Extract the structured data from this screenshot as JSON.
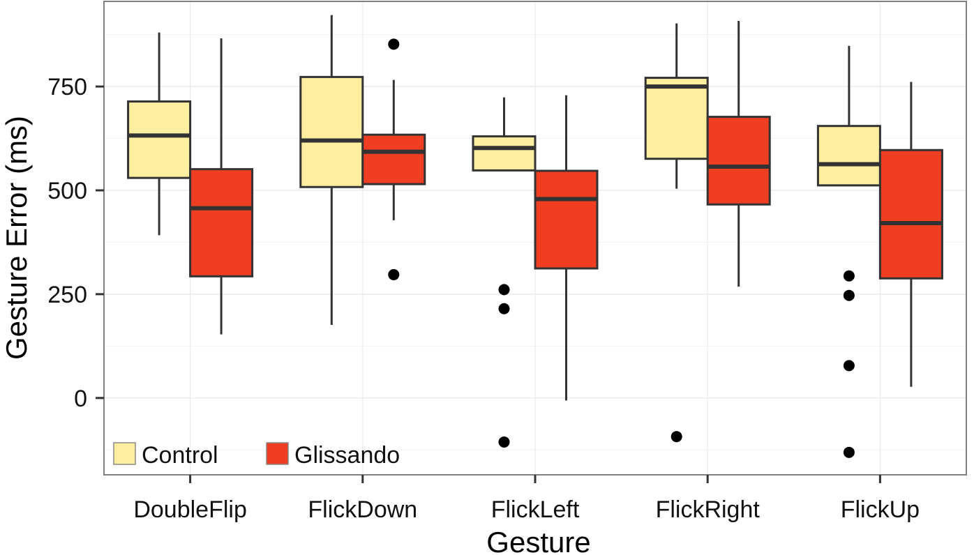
{
  "chart_data": {
    "type": "boxplot",
    "title": "",
    "xlabel": "Gesture",
    "ylabel": "Gesture Error (ms)",
    "categories": [
      "DoubleFlip",
      "FlickDown",
      "FlickLeft",
      "FlickRight",
      "FlickUp"
    ],
    "ylim": [
      -185,
      955
    ],
    "yticks": [
      0,
      250,
      500,
      750
    ],
    "grid": true,
    "legend_position": "bottom-left",
    "series": [
      {
        "name": "Control",
        "color": "#FDEEA0",
        "boxes": [
          {
            "whisker_low": 392,
            "q1": 530,
            "median": 632,
            "q3": 714,
            "whisker_high": 880,
            "outliers": []
          },
          {
            "whisker_low": 176,
            "q1": 508,
            "median": 620,
            "q3": 773,
            "whisker_high": 922,
            "outliers": []
          },
          {
            "whisker_low": 548,
            "q1": 548,
            "median": 602,
            "q3": 630,
            "whisker_high": 724,
            "outliers": [
              261,
              215,
              -106
            ]
          },
          {
            "whisker_low": 504,
            "q1": 576,
            "median": 750,
            "q3": 771,
            "whisker_high": 902,
            "outliers": [
              -93
            ]
          },
          {
            "whisker_low": 512,
            "q1": 512,
            "median": 563,
            "q3": 655,
            "whisker_high": 848,
            "outliers": [
              294,
              247,
              78,
              -131
            ]
          }
        ]
      },
      {
        "name": "Glissando",
        "color": "#F03E22",
        "boxes": [
          {
            "whisker_low": 153,
            "q1": 293,
            "median": 457,
            "q3": 551,
            "whisker_high": 866,
            "outliers": []
          },
          {
            "whisker_low": 428,
            "q1": 515,
            "median": 593,
            "q3": 634,
            "whisker_high": 766,
            "outliers": [
              852,
              297
            ]
          },
          {
            "whisker_low": -6,
            "q1": 312,
            "median": 479,
            "q3": 547,
            "whisker_high": 729,
            "outliers": []
          },
          {
            "whisker_low": 268,
            "q1": 466,
            "median": 557,
            "q3": 677,
            "whisker_high": 908,
            "outliers": []
          },
          {
            "whisker_low": 27,
            "q1": 288,
            "median": 421,
            "q3": 597,
            "whisker_high": 761,
            "outliers": []
          }
        ]
      }
    ]
  }
}
